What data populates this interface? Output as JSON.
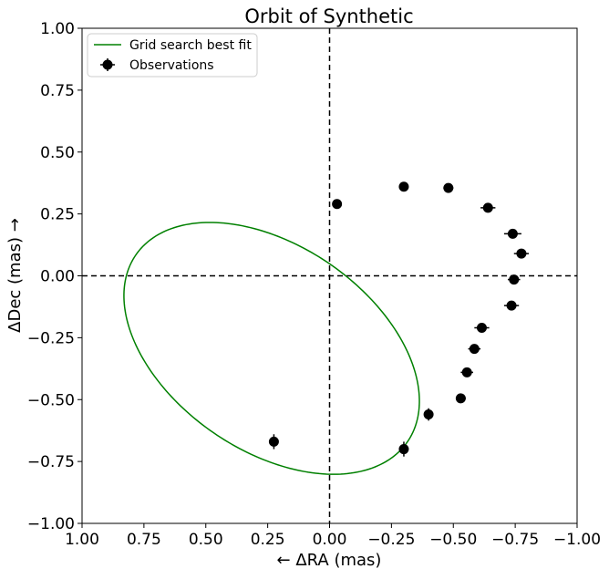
{
  "chart_data": {
    "type": "scatter",
    "title": "Orbit of Synthetic",
    "xlabel": "← ΔRA (mas)",
    "ylabel": "ΔDec (mas)  →",
    "xlim": [
      1.0,
      -1.0
    ],
    "ylim": [
      -1.0,
      1.0
    ],
    "x_inverted": true,
    "xticks": [
      "1.00",
      "0.75",
      "0.50",
      "0.25",
      "0.00",
      "−0.25",
      "−0.50",
      "−0.75",
      "−1.00"
    ],
    "yticks": [
      "1.00",
      "0.75",
      "0.50",
      "0.25",
      "0.00",
      "−0.25",
      "−0.50",
      "−0.75",
      "−1.00"
    ],
    "xtick_values": [
      1.0,
      0.75,
      0.5,
      0.25,
      0.0,
      -0.25,
      -0.5,
      -0.75,
      -1.0
    ],
    "ytick_values": [
      1.0,
      0.75,
      0.5,
      0.25,
      0.0,
      -0.25,
      -0.5,
      -0.75,
      -1.0
    ],
    "reference_lines": {
      "x": 0.0,
      "y": 0.0,
      "style": "dashed",
      "color": "#000000"
    },
    "grid": false,
    "legend_position": "upper-left",
    "series": [
      {
        "name": "Grid search best fit",
        "kind": "line",
        "color": "#008000",
        "ellipse": {
          "center_ra": 0.234,
          "center_dec": -0.293,
          "a": 0.666,
          "b": 0.414,
          "angle_deg": 34.5
        }
      },
      {
        "name": "Observations",
        "kind": "errorbar",
        "color": "#000000",
        "points": [
          {
            "ra": -0.03,
            "dec": 0.29,
            "ra_err": 0.0,
            "dec_err": 0.0
          },
          {
            "ra": -0.3,
            "dec": 0.36,
            "ra_err": 0.0,
            "dec_err": 0.0
          },
          {
            "ra": -0.48,
            "dec": 0.355,
            "ra_err": 0.02,
            "dec_err": 0.01
          },
          {
            "ra": -0.64,
            "dec": 0.275,
            "ra_err": 0.03,
            "dec_err": 0.01
          },
          {
            "ra": -0.74,
            "dec": 0.17,
            "ra_err": 0.035,
            "dec_err": 0.015
          },
          {
            "ra": -0.775,
            "dec": 0.09,
            "ra_err": 0.03,
            "dec_err": 0.015
          },
          {
            "ra": -0.745,
            "dec": -0.015,
            "ra_err": 0.025,
            "dec_err": 0.015
          },
          {
            "ra": -0.735,
            "dec": -0.12,
            "ra_err": 0.03,
            "dec_err": 0.015
          },
          {
            "ra": -0.615,
            "dec": -0.21,
            "ra_err": 0.03,
            "dec_err": 0.015
          },
          {
            "ra": -0.585,
            "dec": -0.295,
            "ra_err": 0.025,
            "dec_err": 0.015
          },
          {
            "ra": -0.555,
            "dec": -0.39,
            "ra_err": 0.025,
            "dec_err": 0.015
          },
          {
            "ra": -0.53,
            "dec": -0.495,
            "ra_err": 0.02,
            "dec_err": 0.015
          },
          {
            "ra": -0.4,
            "dec": -0.56,
            "ra_err": 0.01,
            "dec_err": 0.025
          },
          {
            "ra": 0.225,
            "dec": -0.67,
            "ra_err": 0.01,
            "dec_err": 0.03
          },
          {
            "ra": -0.3,
            "dec": -0.7,
            "ra_err": 0.01,
            "dec_err": 0.03
          }
        ]
      }
    ]
  }
}
